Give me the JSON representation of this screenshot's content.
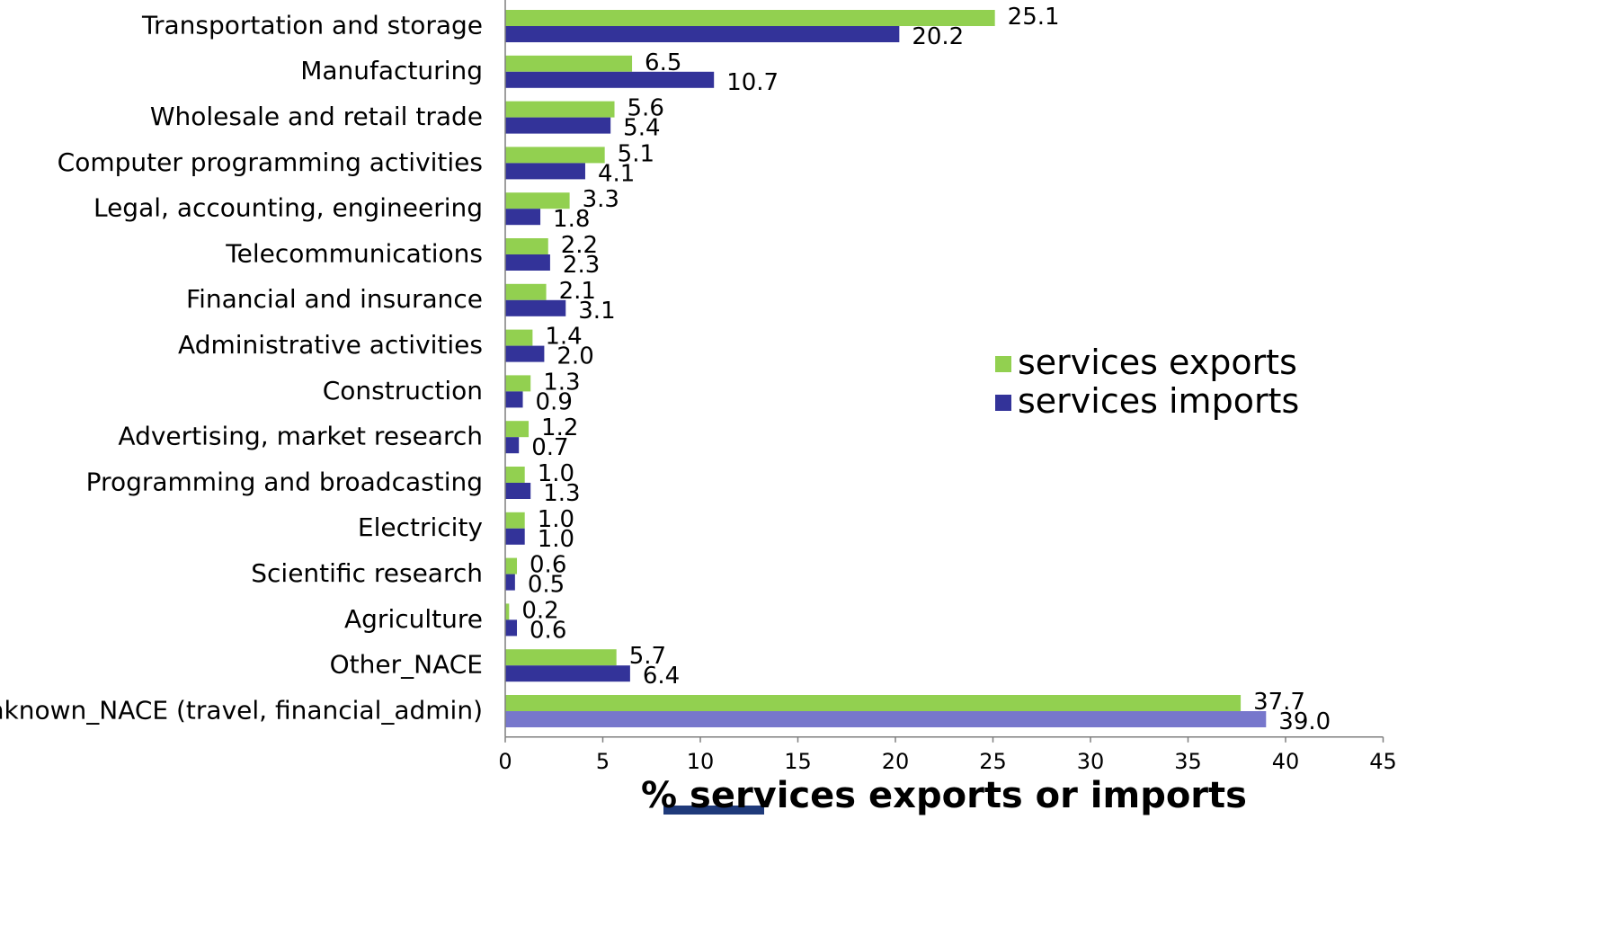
{
  "chart_data": {
    "type": "bar",
    "orientation": "horizontal",
    "xlabel": "% services exports or imports",
    "xlim": [
      0,
      45
    ],
    "xticks": [
      0,
      5,
      10,
      15,
      20,
      25,
      30,
      35,
      40,
      45
    ],
    "grid": false,
    "legend_position": "right",
    "categories": [
      "Transportation and storage",
      "Manufacturing",
      "Wholesale and retail trade",
      "Computer programming activities",
      "Legal, accounting, engineering",
      "Telecommunications",
      "Financial and insurance",
      "Administrative activities",
      "Construction",
      "Advertising, market research",
      "Programming and broadcasting",
      "Electricity",
      "Scientific research",
      "Agriculture",
      "Other_NACE",
      "Unknown_NACE (travel, financial_admin)"
    ],
    "series": [
      {
        "name": "services exports",
        "color": "#92d050",
        "values": [
          25.1,
          6.5,
          5.6,
          5.1,
          3.3,
          2.2,
          2.1,
          1.4,
          1.3,
          1.2,
          1.0,
          1.0,
          0.6,
          0.2,
          5.7,
          37.7
        ],
        "labels": [
          "25.1",
          "6.5",
          "5.6",
          "5.1",
          "3.3",
          "2.2",
          "2.1",
          "1.4",
          "1.3",
          "1.2",
          "1.0",
          "1.0",
          "0.6",
          "0.2",
          "5.7",
          "37.7"
        ]
      },
      {
        "name": "services imports",
        "color": "#333399",
        "highlight_color": "#7777cc",
        "highlight_index": 15,
        "values": [
          20.2,
          10.7,
          5.4,
          4.1,
          1.8,
          2.3,
          3.1,
          2.0,
          0.9,
          0.7,
          1.3,
          1.0,
          0.5,
          0.6,
          6.4,
          39.0
        ],
        "labels": [
          "20.2",
          "10.7",
          "5.4",
          "4.1",
          "1.8",
          "2.3",
          "3.1",
          "2.0",
          "0.9",
          "0.7",
          "1.3",
          "1.0",
          "0.5",
          "0.6",
          "6.4",
          "39.0"
        ]
      }
    ]
  },
  "decoration": {
    "underline_color": "#1f3a7a"
  }
}
